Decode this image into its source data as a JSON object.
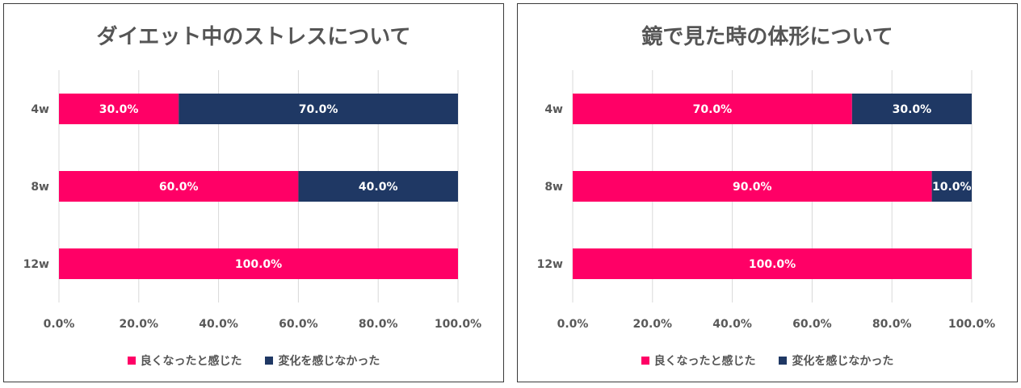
{
  "colors": {
    "improved": "#FF0066",
    "no_change": "#1F3864",
    "grid": "#D9D9D9",
    "text": "#595959"
  },
  "chart_data": [
    {
      "type": "bar",
      "orientation": "horizontal",
      "stacked": "percent",
      "title": "ダイエット中のストレスについて",
      "categories": [
        "4w",
        "8w",
        "12w"
      ],
      "series": [
        {
          "name": "良くなったと感じた",
          "values": [
            30.0,
            60.0,
            100.0
          ],
          "labels": [
            "30.0%",
            "60.0%",
            "100.0%"
          ]
        },
        {
          "name": "変化を感じなかった",
          "values": [
            70.0,
            40.0,
            0.0
          ],
          "labels": [
            "70.0%",
            "40.0%",
            ""
          ]
        }
      ],
      "xlim": [
        0,
        100
      ],
      "x_ticks": [
        "0.0%",
        "20.0%",
        "40.0%",
        "60.0%",
        "80.0%",
        "100.0%"
      ],
      "grid": "vertical",
      "legend": "bottom"
    },
    {
      "type": "bar",
      "orientation": "horizontal",
      "stacked": "percent",
      "title": "鏡で見た時の体形について",
      "categories": [
        "4w",
        "8w",
        "12w"
      ],
      "series": [
        {
          "name": "良くなったと感じた",
          "values": [
            70.0,
            90.0,
            100.0
          ],
          "labels": [
            "70.0%",
            "90.0%",
            "100.0%"
          ]
        },
        {
          "name": "変化を感じなかった",
          "values": [
            30.0,
            10.0,
            0.0
          ],
          "labels": [
            "30.0%",
            "10.0%",
            ""
          ]
        }
      ],
      "xlim": [
        0,
        100
      ],
      "x_ticks": [
        "0.0%",
        "20.0%",
        "40.0%",
        "60.0%",
        "80.0%",
        "100.0%"
      ],
      "grid": "vertical",
      "legend": "bottom"
    }
  ]
}
